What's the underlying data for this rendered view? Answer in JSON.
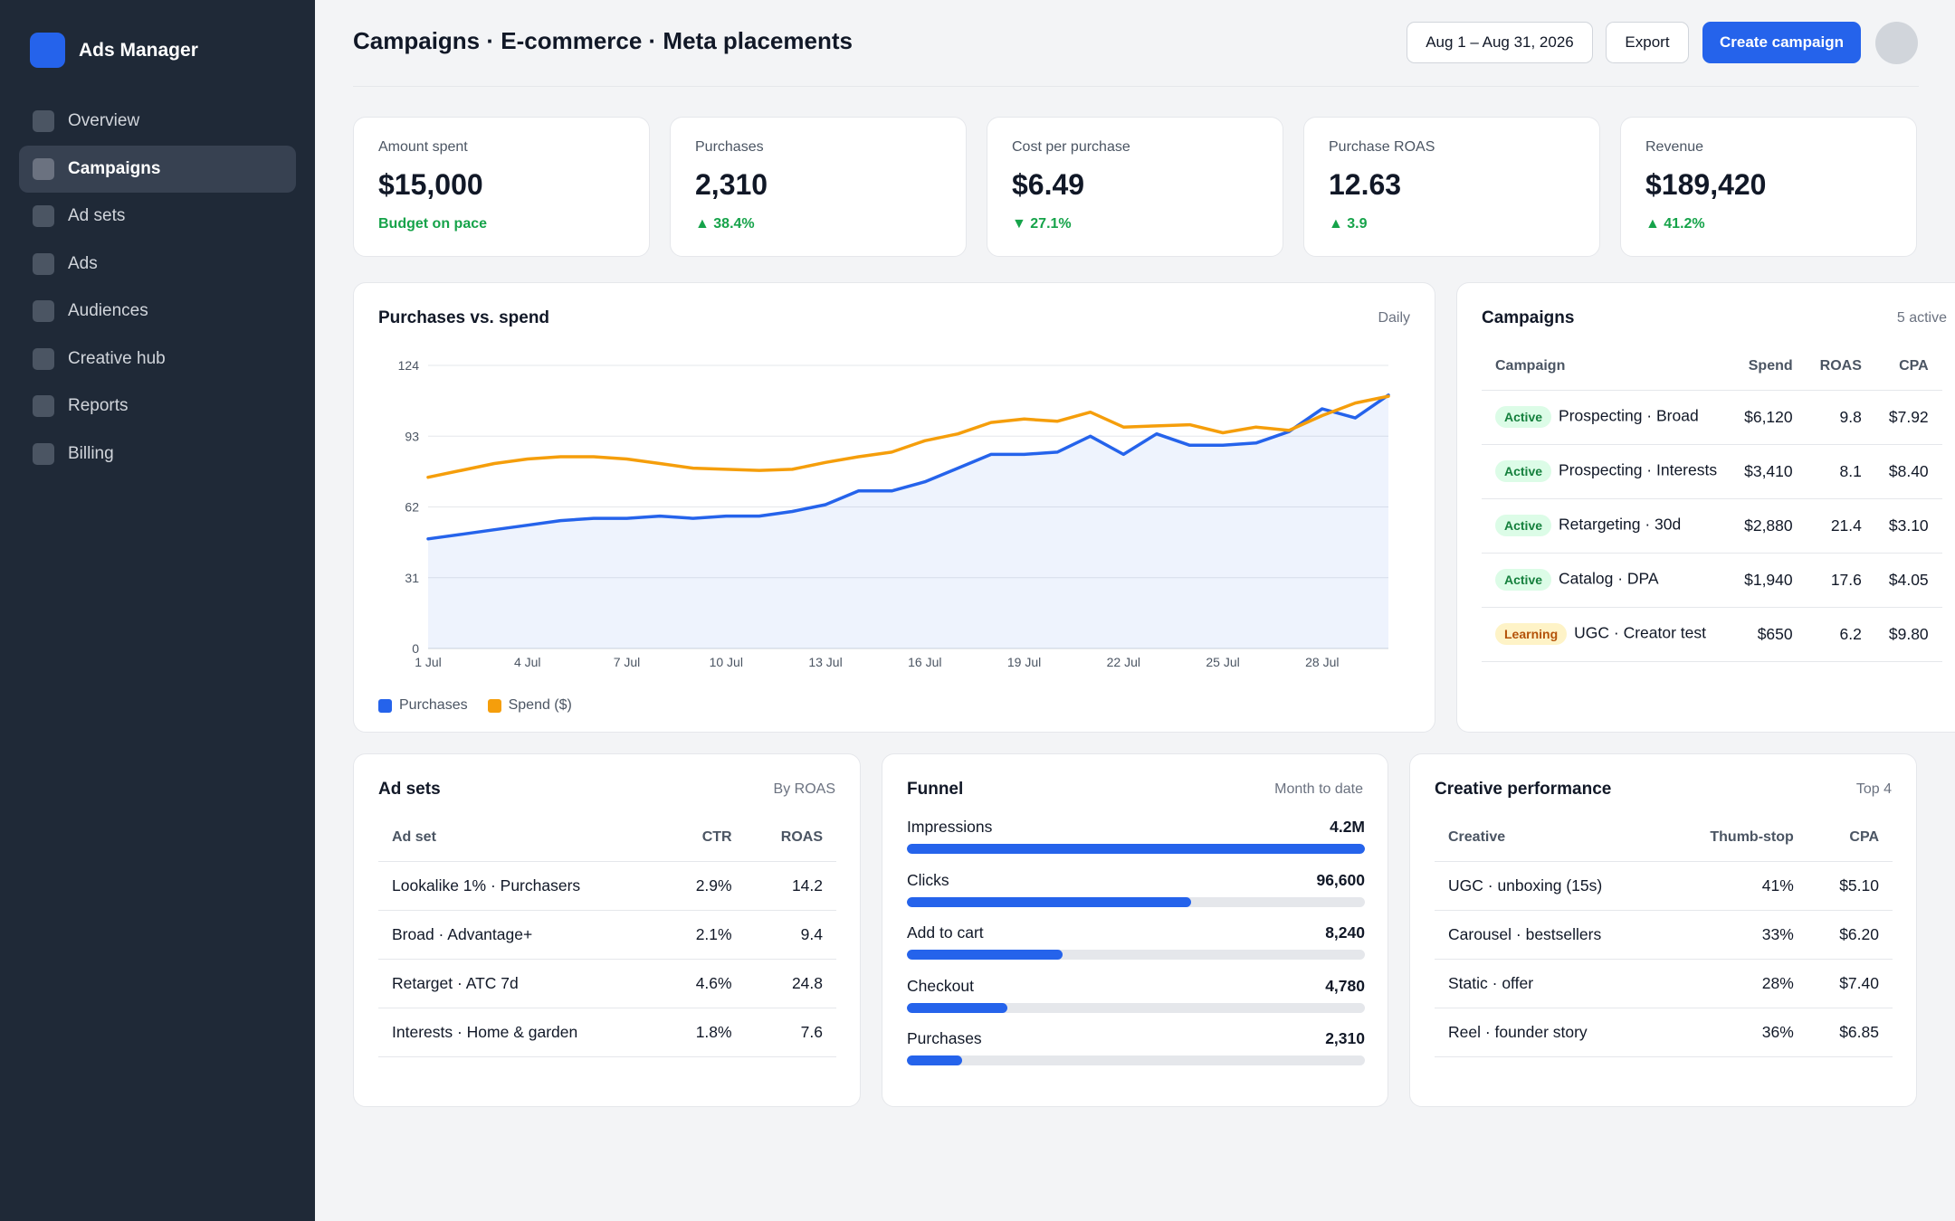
{
  "app": {
    "name": "Ads Manager"
  },
  "sidebar": {
    "items": [
      {
        "label": "Overview",
        "active": false
      },
      {
        "label": "Campaigns",
        "active": true
      },
      {
        "label": "Ad sets",
        "active": false
      },
      {
        "label": "Ads",
        "active": false
      },
      {
        "label": "Audiences",
        "active": false
      },
      {
        "label": "Creative hub",
        "active": false
      },
      {
        "label": "Reports",
        "active": false
      },
      {
        "label": "Billing",
        "active": false
      }
    ]
  },
  "header": {
    "title": "Campaigns · E-commerce · Meta placements",
    "date_range": "Aug 1 – Aug 31, 2026",
    "export_label": "Export",
    "create_label": "Create campaign"
  },
  "kpis": [
    {
      "label": "Amount spent",
      "value": "$15,000",
      "delta": "Budget on pace"
    },
    {
      "label": "Purchases",
      "value": "2,310",
      "delta": "▲ 38.4%"
    },
    {
      "label": "Cost per purchase",
      "value": "$6.49",
      "delta": "▼ 27.1%"
    },
    {
      "label": "Purchase ROAS",
      "value": "12.63",
      "delta": "▲ 3.9"
    },
    {
      "label": "Revenue",
      "value": "$189,420",
      "delta": "▲ 41.2%"
    }
  ],
  "chart_card": {
    "title": "Purchases vs. spend",
    "meta": "Daily"
  },
  "chart_data": {
    "type": "line",
    "x": [
      "1 Jul",
      "2 Jul",
      "3 Jul",
      "4 Jul",
      "5 Jul",
      "6 Jul",
      "7 Jul",
      "8 Jul",
      "9 Jul",
      "10 Jul",
      "11 Jul",
      "12 Jul",
      "13 Jul",
      "14 Jul",
      "15 Jul",
      "16 Jul",
      "17 Jul",
      "18 Jul",
      "19 Jul",
      "20 Jul",
      "21 Jul",
      "22 Jul",
      "23 Jul",
      "24 Jul",
      "25 Jul",
      "26 Jul",
      "27 Jul",
      "28 Jul",
      "29 Jul",
      "30 Jul"
    ],
    "x_ticks": [
      "1 Jul",
      "4 Jul",
      "7 Jul",
      "10 Jul",
      "13 Jul",
      "16 Jul",
      "19 Jul",
      "22 Jul",
      "25 Jul",
      "28 Jul"
    ],
    "y_ticks": [
      0,
      31,
      62,
      93,
      124
    ],
    "ylim": [
      0,
      124
    ],
    "series": [
      {
        "name": "Purchases",
        "color": "#2563eb",
        "area": true,
        "values": [
          48,
          50,
          52,
          54,
          56,
          57,
          57,
          58,
          57,
          58,
          58,
          60,
          63,
          69,
          69,
          73,
          79,
          85,
          85,
          86,
          93,
          85,
          94,
          89,
          89,
          90,
          95,
          105,
          101,
          111
        ]
      },
      {
        "name": "Spend ($)",
        "color": "#f59e0b",
        "area": false,
        "values": [
          75,
          78,
          81,
          83,
          84,
          84,
          83,
          81,
          79,
          78.5,
          78,
          78.5,
          81.5,
          84,
          86,
          91,
          94,
          99,
          100.5,
          99.5,
          103.5,
          97,
          97.5,
          98,
          94.5,
          97,
          95.5,
          102,
          107.5,
          110.5
        ]
      }
    ]
  },
  "campaigns_card": {
    "title": "Campaigns",
    "meta": "5 active",
    "headers": {
      "name": "Campaign",
      "spend": "Spend",
      "roas": "ROAS",
      "cpa": "CPA"
    },
    "rows": [
      {
        "status": "Active",
        "status_kind": "active",
        "name": "Prospecting · Broad",
        "spend": "$6,120",
        "roas": "9.8",
        "cpa": "$7.92"
      },
      {
        "status": "Active",
        "status_kind": "active",
        "name": "Prospecting · Interests",
        "spend": "$3,410",
        "roas": "8.1",
        "cpa": "$8.40"
      },
      {
        "status": "Active",
        "status_kind": "active",
        "name": "Retargeting · 30d",
        "spend": "$2,880",
        "roas": "21.4",
        "cpa": "$3.10"
      },
      {
        "status": "Active",
        "status_kind": "active",
        "name": "Catalog · DPA",
        "spend": "$1,940",
        "roas": "17.6",
        "cpa": "$4.05"
      },
      {
        "status": "Learning",
        "status_kind": "learning",
        "name": "UGC · Creator test",
        "spend": "$650",
        "roas": "6.2",
        "cpa": "$9.80"
      }
    ]
  },
  "adsets_card": {
    "title": "Ad sets",
    "meta": "By ROAS",
    "headers": {
      "name": "Ad set",
      "ctr": "CTR",
      "roas": "ROAS"
    },
    "rows": [
      {
        "name": "Lookalike 1% · Purchasers",
        "ctr": "2.9%",
        "roas": "14.2"
      },
      {
        "name": "Broad · Advantage+",
        "ctr": "2.1%",
        "roas": "9.4"
      },
      {
        "name": "Retarget · ATC 7d",
        "ctr": "4.6%",
        "roas": "24.8"
      },
      {
        "name": "Interests · Home & garden",
        "ctr": "1.8%",
        "roas": "7.6"
      }
    ]
  },
  "funnel_card": {
    "title": "Funnel",
    "meta": "Month to date",
    "steps": [
      {
        "label": "Impressions",
        "value": "4.2M",
        "fraction": 1.0
      },
      {
        "label": "Clicks",
        "value": "96,600",
        "fraction": 0.62
      },
      {
        "label": "Add to cart",
        "value": "8,240",
        "fraction": 0.34
      },
      {
        "label": "Checkout",
        "value": "4,780",
        "fraction": 0.22
      },
      {
        "label": "Purchases",
        "value": "2,310",
        "fraction": 0.12
      }
    ]
  },
  "creative_card": {
    "title": "Creative performance",
    "meta": "Top 4",
    "headers": {
      "name": "Creative",
      "thumb": "Thumb-stop",
      "cpa": "CPA"
    },
    "rows": [
      {
        "name": "UGC · unboxing (15s)",
        "thumb": "41%",
        "cpa": "$5.10"
      },
      {
        "name": "Carousel · bestsellers",
        "thumb": "33%",
        "cpa": "$6.20"
      },
      {
        "name": "Static · offer",
        "thumb": "28%",
        "cpa": "$7.40"
      },
      {
        "name": "Reel · founder story",
        "thumb": "36%",
        "cpa": "$6.85"
      }
    ]
  }
}
